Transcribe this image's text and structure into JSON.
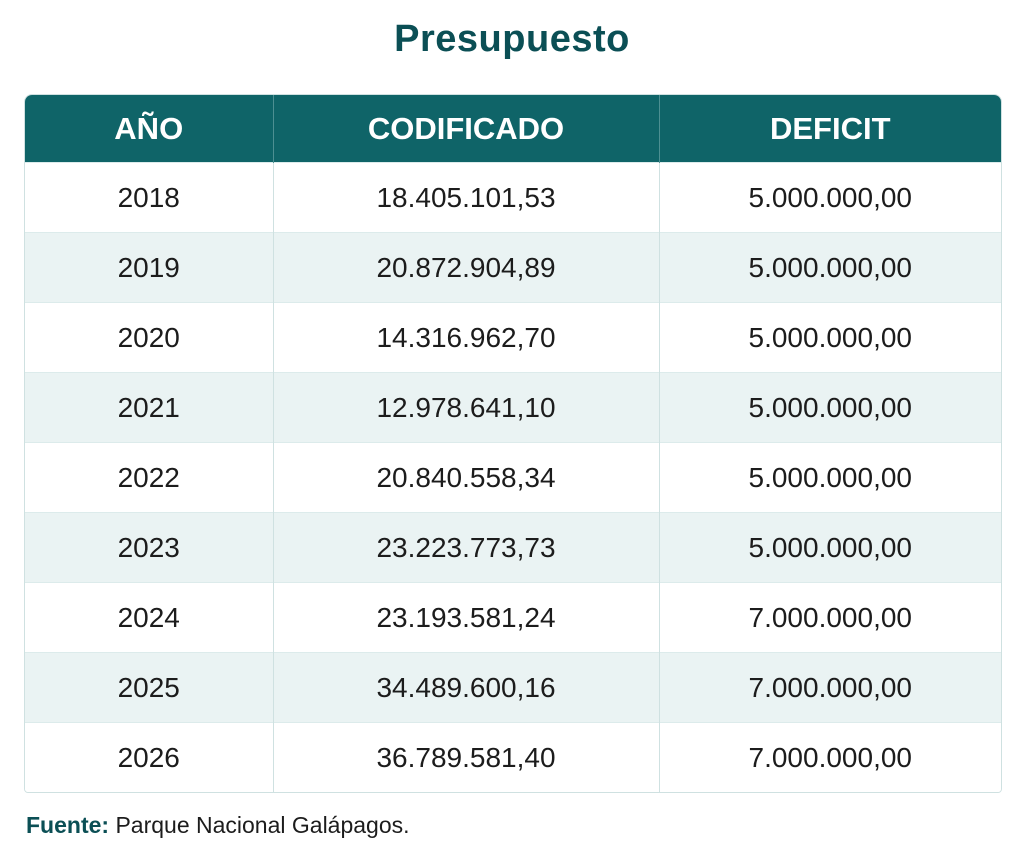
{
  "chart_data": {
    "type": "table",
    "title": "Presupuesto",
    "columns": [
      "AÑO",
      "CODIFICADO",
      "DEFICIT"
    ],
    "rows": [
      [
        "2018",
        "18.405.101,53",
        "5.000.000,00"
      ],
      [
        "2019",
        "20.872.904,89",
        "5.000.000,00"
      ],
      [
        "2020",
        "14.316.962,70",
        "5.000.000,00"
      ],
      [
        "2021",
        "12.978.641,10",
        "5.000.000,00"
      ],
      [
        "2022",
        "20.840.558,34",
        "5.000.000,00"
      ],
      [
        "2023",
        "23.223.773,73",
        "5.000.000,00"
      ],
      [
        "2024",
        "23.193.581,24",
        "7.000.000,00"
      ],
      [
        "2025",
        "34.489.600,16",
        "7.000.000,00"
      ],
      [
        "2026",
        "36.789.581,40",
        "7.000.000,00"
      ]
    ]
  },
  "source": {
    "label": "Fuente:",
    "text": "Parque Nacional Galápagos."
  },
  "colors": {
    "header_bg": "#0f6468",
    "title": "#0b4f55",
    "stripe": "#eaf3f3"
  }
}
